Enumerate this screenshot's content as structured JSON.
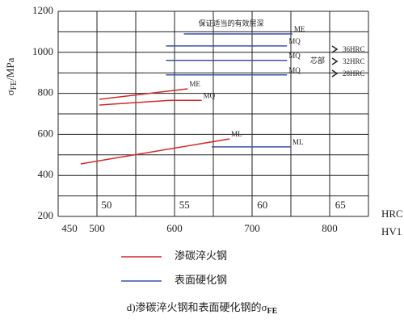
{
  "chart_data": {
    "type": "line",
    "y_label": {
      "symbol": "σ",
      "sub": "FE",
      "unit": "/MPa"
    },
    "x_label": "HV1",
    "x2_label": "HRC",
    "ylim": [
      200,
      1200
    ],
    "yticks": [
      200,
      400,
      600,
      800,
      1000,
      1200
    ],
    "ygrid": [
      200,
      300,
      400,
      500,
      600,
      700,
      800,
      900,
      1000,
      1100,
      1200
    ],
    "xlim": [
      450,
      850
    ],
    "xticks": [
      450,
      500,
      600,
      700,
      800
    ],
    "xgrid": [
      500,
      550,
      600,
      650,
      700,
      750,
      800
    ],
    "x2lim": [
      46.9,
      66.8
    ],
    "x2ticks": [
      50,
      55,
      60,
      65
    ],
    "series": [
      {
        "name": "ME",
        "color": "#d62728",
        "x": [
          503,
          617
        ],
        "values": [
          771,
          822
        ]
      },
      {
        "name": "MQ",
        "color": "#d62728",
        "x": [
          503,
          594,
          635
        ],
        "values": [
          743,
          766,
          766
        ]
      },
      {
        "name": "ML",
        "color": "#d62728",
        "x": [
          479,
          671
        ],
        "values": [
          456,
          578
        ]
      },
      {
        "name": "ML",
        "color": "#3a4fa8",
        "x": [
          648,
          750
        ],
        "values": [
          539,
          539
        ]
      },
      {
        "name": "ME",
        "color": "#3a4fa8",
        "x": [
          612,
          752
        ],
        "values": [
          1090,
          1090
        ]
      },
      {
        "name": "MQ",
        "color": "#3a4fa8",
        "x": [
          589,
          745
        ],
        "values": [
          1031,
          1031
        ]
      },
      {
        "name": "MQ",
        "color": "#3a4fa8",
        "x": [
          589,
          745
        ],
        "values": [
          961,
          961
        ]
      },
      {
        "name": "MQ",
        "color": "#3a4fa8",
        "x": [
          589,
          745
        ],
        "values": [
          890,
          890
        ]
      }
    ],
    "annotations": {
      "depth": "保证适当的有效层深",
      "core": "芯部",
      "core_hardness": [
        "36HRC",
        "32HRC",
        "28HRC"
      ]
    },
    "legend": [
      {
        "label": "渗碳淬火钢",
        "color": "#d62728"
      },
      {
        "label": "表面硬化钢",
        "color": "#3a4fa8"
      }
    ],
    "caption": {
      "text": "d)渗碳淬火钢和表面硬化钢的σ",
      "sub": "FE"
    }
  }
}
